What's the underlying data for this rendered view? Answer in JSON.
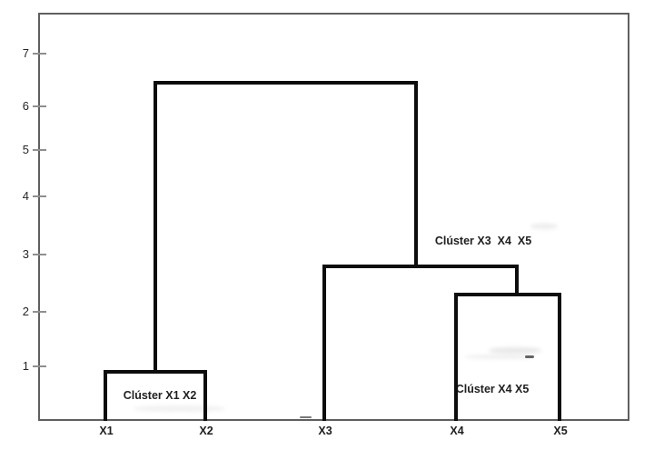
{
  "chart_data": {
    "type": "dendrogram",
    "orientation": "vertical",
    "leaves": [
      "X1",
      "X2",
      "X3",
      "X4",
      "X5"
    ],
    "merges": [
      {
        "id": "m1",
        "members": [
          "X1",
          "X2"
        ],
        "height": 0.9,
        "label": "Clúster X1 X2"
      },
      {
        "id": "m2",
        "members": [
          "X4",
          "X5"
        ],
        "height": 2.3,
        "label": "Clúster X4 X5"
      },
      {
        "id": "m3",
        "members": [
          "X3",
          "m2"
        ],
        "height": 2.8,
        "label": "Clúster X3  X4  X5"
      },
      {
        "id": "m4",
        "members": [
          "m1",
          "m3"
        ],
        "height": 6.45,
        "label": ""
      }
    ],
    "y_axis": {
      "ticks": [
        1,
        2,
        3,
        4,
        5,
        6,
        7
      ],
      "range": [
        0,
        7.85
      ]
    },
    "x_axis": {
      "labels": [
        "X1",
        "X2",
        "X3",
        "X4",
        "X5"
      ]
    },
    "grid": false,
    "legend": false,
    "colors": {
      "branch_line": "#0d0d0d",
      "axis_frame": "#5f5f5f",
      "tick_mark": "#8f8f8f",
      "text": "#202020",
      "background": "#ffffff"
    }
  }
}
